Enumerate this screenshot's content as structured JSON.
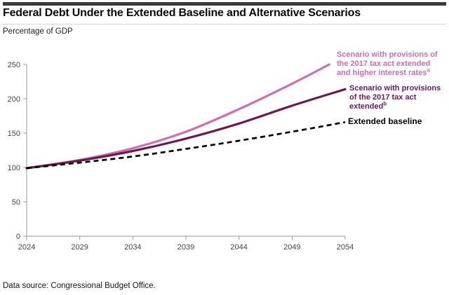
{
  "header": {
    "title": "Federal Debt Under the Extended Baseline and Alternative Scenarios",
    "subtitle": "Percentage of GDP"
  },
  "footer": {
    "source": "Data source: Congressional Budget Office."
  },
  "chart_data": {
    "type": "line",
    "title": "Federal Debt Under the Extended Baseline and Alternative Scenarios",
    "xlabel": "",
    "ylabel": "Percentage of GDP",
    "xlim": [
      2024,
      2054
    ],
    "ylim": [
      0,
      250
    ],
    "x_ticks": [
      2024,
      2029,
      2034,
      2039,
      2044,
      2049,
      2054
    ],
    "y_ticks": [
      0,
      50,
      100,
      150,
      200,
      250
    ],
    "grid": false,
    "legend_position": "labels-at-line-ends",
    "axis_color": "#999999",
    "tick_label_color": "#454545",
    "series": [
      {
        "name": "Scenario with provisions of the 2017 tax act extended and higher interest rates",
        "label_lines": [
          "Scenario with provisions of",
          "the 2017 tax act extended",
          "and higher interest rates"
        ],
        "sup": "a",
        "color": "#cf6fae",
        "style": "solid",
        "x": [
          2024,
          2029,
          2034,
          2039,
          2044,
          2049,
          2052.5
        ],
        "values": [
          99,
          111,
          128,
          152,
          185,
          222,
          250
        ]
      },
      {
        "name": "Scenario with provisions of the 2017 tax act extended",
        "label_lines": [
          "Scenario with provisions",
          "of the 2017 tax act",
          "extended"
        ],
        "sup": "b",
        "color": "#6b1b52",
        "style": "solid",
        "x": [
          2024,
          2029,
          2034,
          2039,
          2044,
          2049,
          2054
        ],
        "values": [
          99,
          110,
          124,
          142,
          164,
          190,
          214
        ]
      },
      {
        "name": "Extended baseline",
        "label_lines": [
          "Extended baseline"
        ],
        "sup": "",
        "color": "#000000",
        "style": "dashed",
        "x": [
          2024,
          2029,
          2034,
          2039,
          2044,
          2049,
          2054
        ],
        "values": [
          99,
          107,
          116,
          127,
          139,
          152,
          166
        ]
      }
    ]
  }
}
